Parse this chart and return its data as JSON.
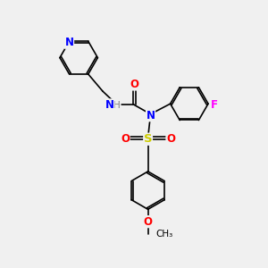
{
  "bg_color": "#f0f0f0",
  "atom_colors": {
    "N": "#0000ff",
    "O": "#ff0000",
    "F": "#ff00ff",
    "S": "#cccc00",
    "C": "#000000",
    "H": "#808080"
  },
  "bond_lw": 1.2,
  "font_size": 8.5,
  "figsize": [
    3.0,
    3.0
  ],
  "dpi": 100
}
